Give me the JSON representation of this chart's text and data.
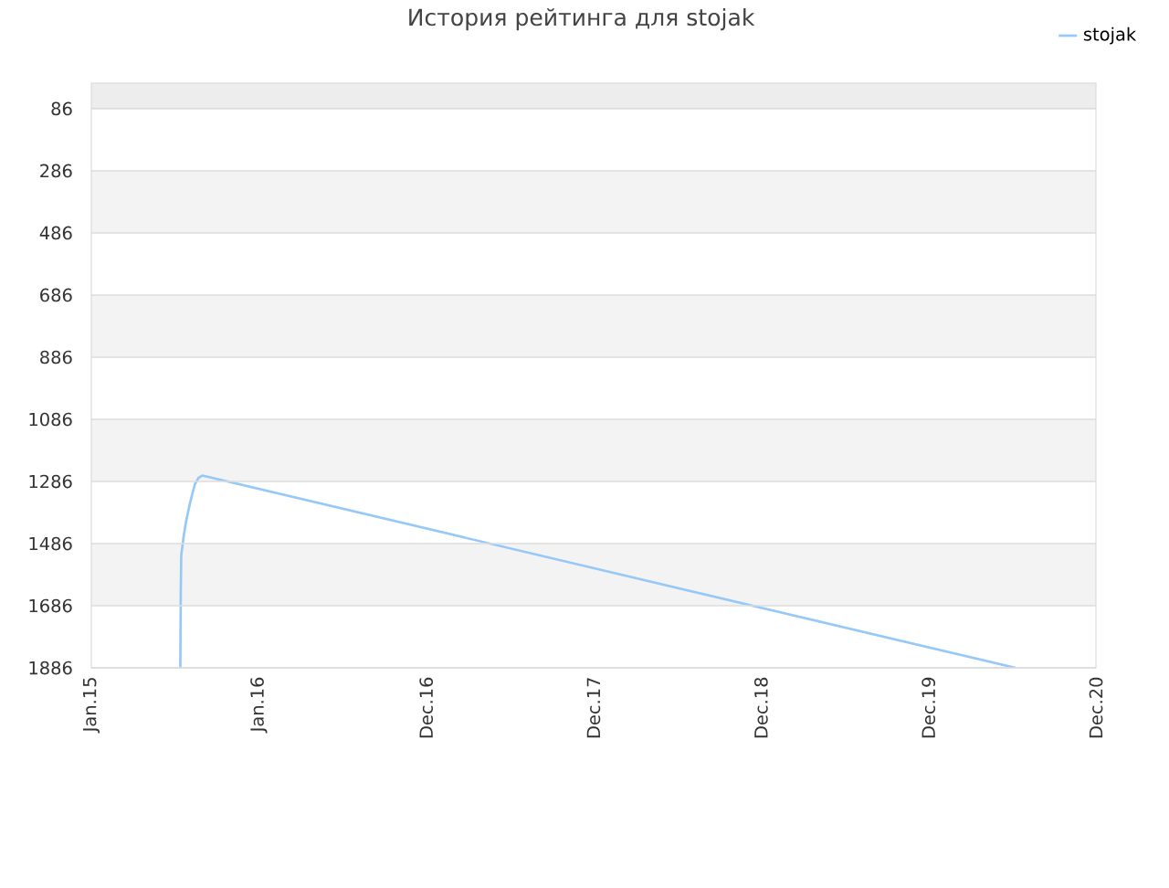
{
  "chart_data": {
    "type": "line",
    "title": "История рейтинга для stojak",
    "x": [
      "2015-07-14",
      "2015-07-15",
      "2015-07-16",
      "2015-07-22",
      "2015-07-27",
      "2015-08-04",
      "2015-08-09",
      "2015-08-15",
      "2015-08-23",
      "2015-08-31",
      "2020-07-08"
    ],
    "series": [
      {
        "name": "stojak",
        "color": "#96c8f8",
        "values": [
          1886,
          1635,
          1523,
          1455,
          1411,
          1357,
          1327,
          1294,
          1274,
          1267,
          1886
        ]
      }
    ],
    "xlim": [
      "2015-01-01",
      "2020-12-30"
    ],
    "xticks": [
      {
        "value": "2015-01-01",
        "label": "Jan.15"
      },
      {
        "value": "2016-01-01",
        "label": "Jan.16"
      },
      {
        "value": "2016-12-31",
        "label": "Dec.16"
      },
      {
        "value": "2017-12-31",
        "label": "Dec.17"
      },
      {
        "value": "2018-12-31",
        "label": "Dec.18"
      },
      {
        "value": "2019-12-31",
        "label": "Dec.19"
      },
      {
        "value": "2020-12-30",
        "label": "Dec.20"
      }
    ],
    "ylim": [
      1886,
      4
    ],
    "yticks": [
      86,
      286,
      486,
      686,
      886,
      1086,
      1286,
      1486,
      1686,
      1886
    ],
    "bands": [
      {
        "axis": "y",
        "from": 4,
        "to": 86,
        "color": "#ededed"
      },
      {
        "axis": "y",
        "from": 286,
        "to": 486,
        "color": "#f3f3f3"
      },
      {
        "axis": "y",
        "from": 686,
        "to": 886,
        "color": "#f3f3f3"
      },
      {
        "axis": "y",
        "from": 1086,
        "to": 1286,
        "color": "#f3f3f3"
      },
      {
        "axis": "y",
        "from": 1486,
        "to": 1686,
        "color": "#f3f3f3"
      }
    ],
    "grid": "y",
    "legend": "top right",
    "marker": "none",
    "line_style": "solid"
  }
}
